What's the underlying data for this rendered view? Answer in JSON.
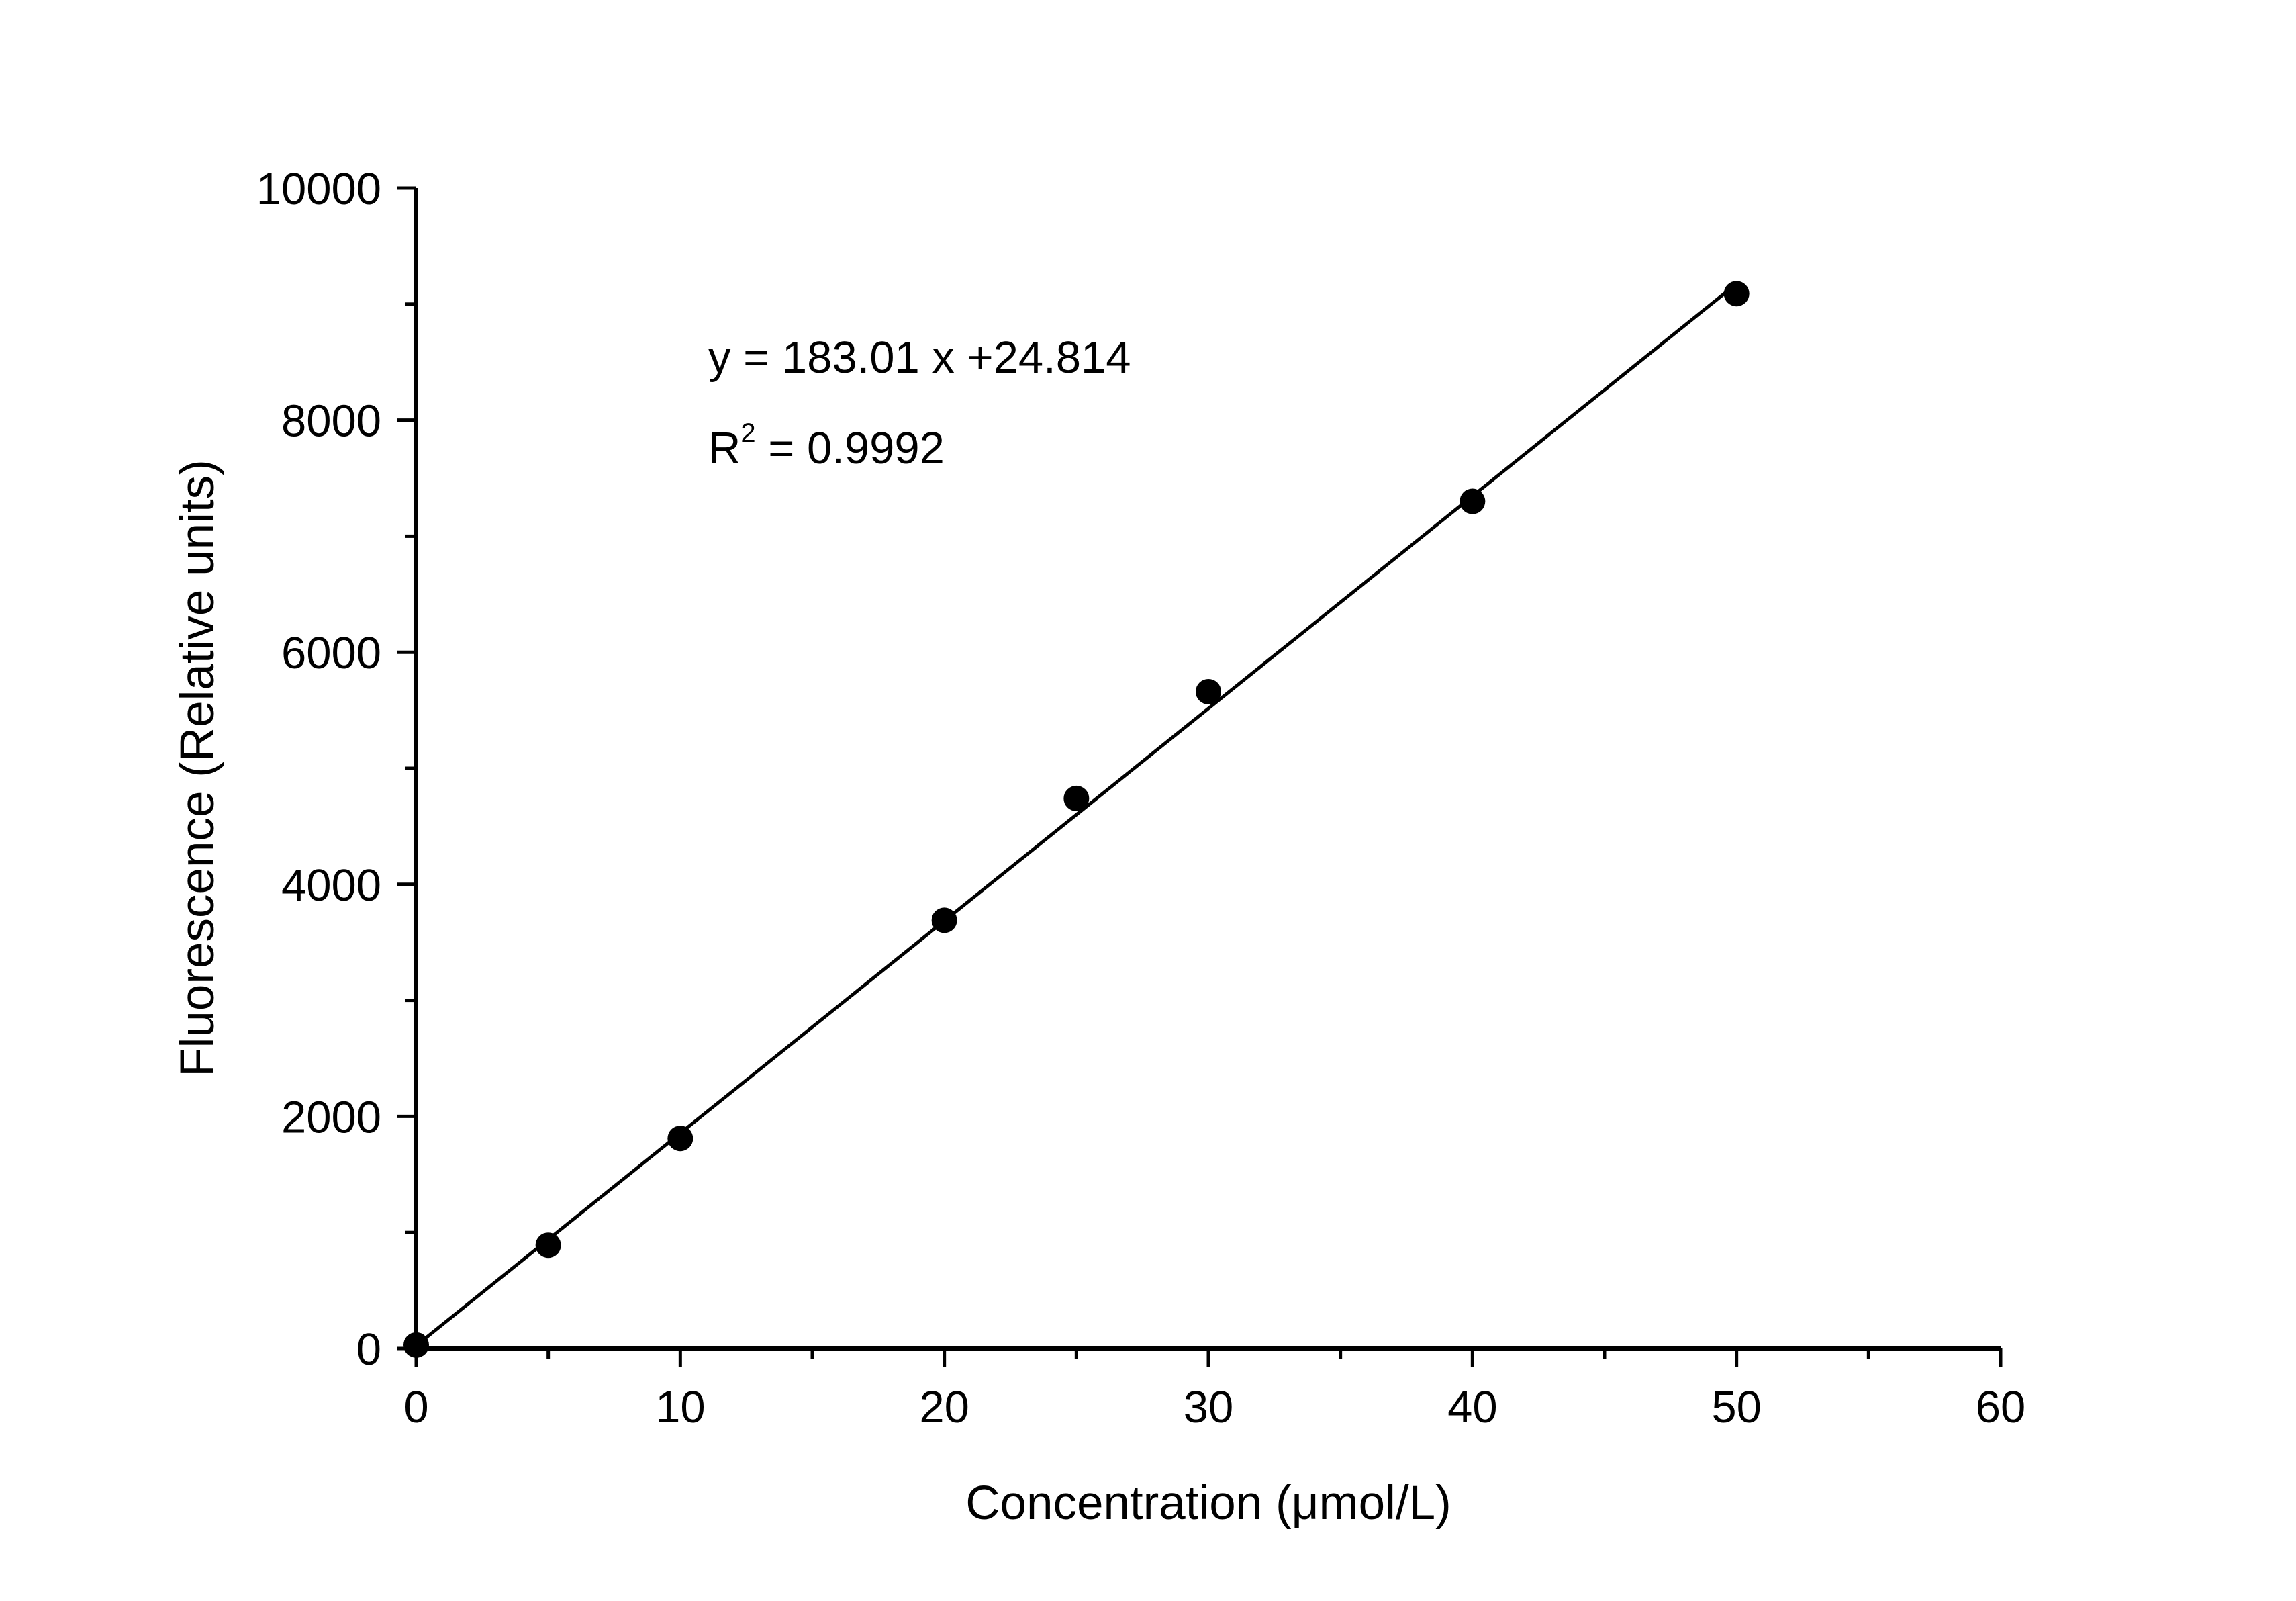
{
  "chart_data": {
    "type": "scatter",
    "title": "",
    "xlabel": "Concentration (μmol/L)",
    "ylabel": "Fluorescence (Relative units)",
    "xlim": [
      0,
      60
    ],
    "ylim": [
      0,
      10000
    ],
    "x_ticks": [
      "0",
      "10",
      "20",
      "30",
      "40",
      "50",
      "60"
    ],
    "y_ticks": [
      "0",
      "2000",
      "4000",
      "6000",
      "8000",
      "10000"
    ],
    "grid": false,
    "legend": "none",
    "series": [
      {
        "x": [
          0,
          5,
          10,
          20,
          25,
          30,
          40,
          50
        ],
        "y": [
          30,
          890,
          1810,
          3690,
          4740,
          5660,
          7300,
          9090
        ],
        "marker": "circle",
        "color": "#000000"
      }
    ],
    "fit": {
      "slope": 183.01,
      "intercept": 24.814,
      "x_range": [
        0,
        50
      ],
      "color": "#000000"
    },
    "annotations": {
      "equation": "y = 183.01 x +24.814",
      "r2_base": "R",
      "r2_sup": "2",
      "r2_value": " = 0.9992"
    }
  }
}
